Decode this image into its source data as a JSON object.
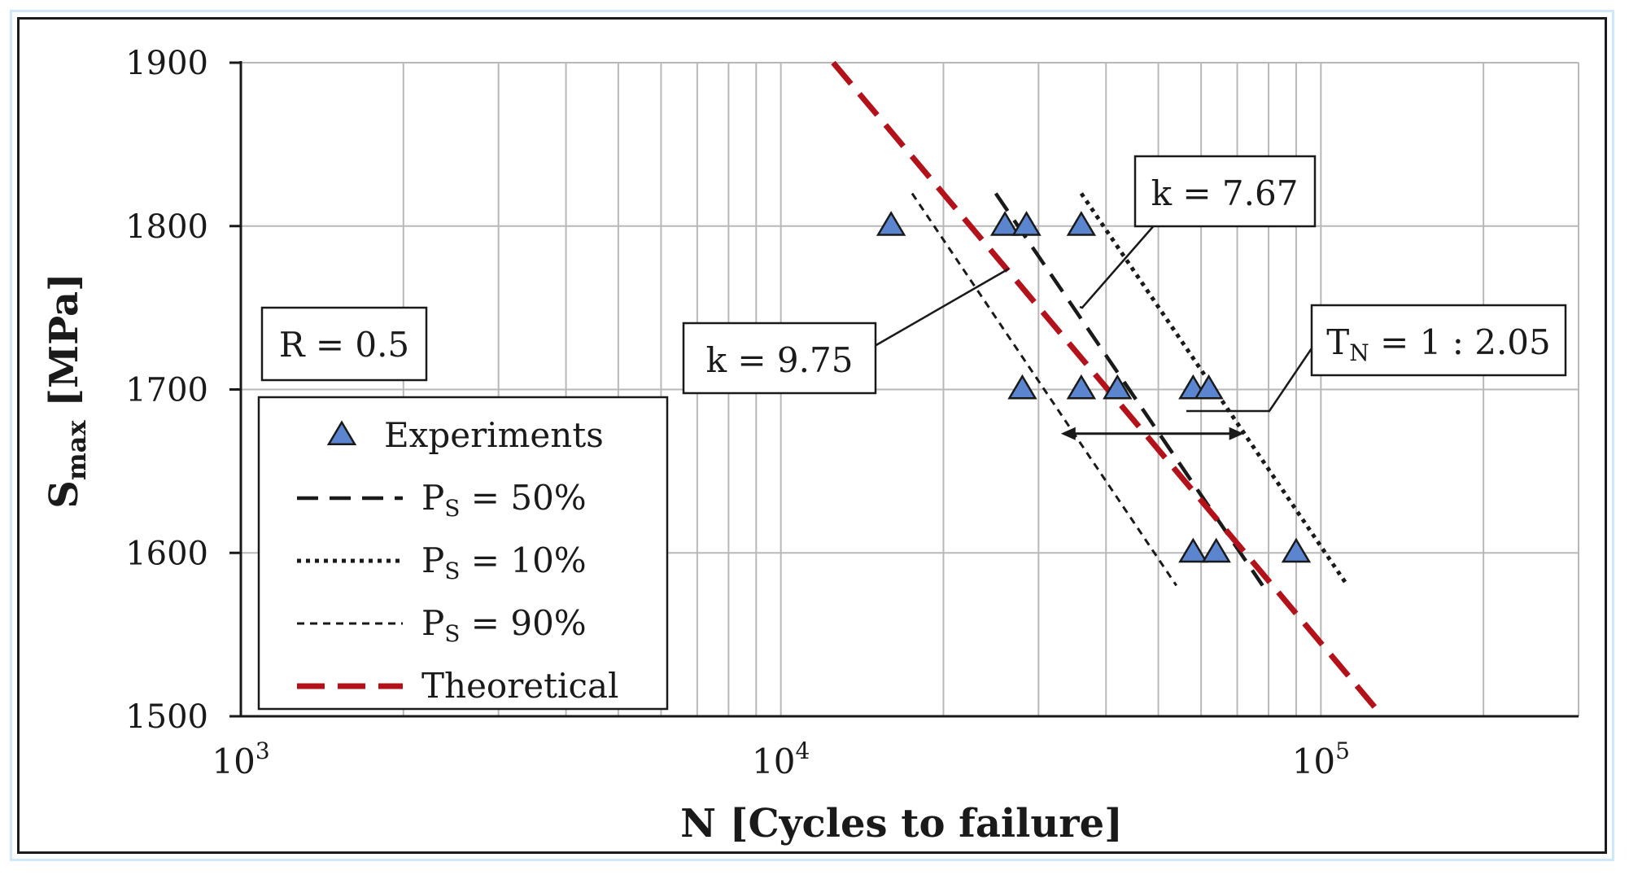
{
  "chart_data": {
    "type": "scatter",
    "title": "",
    "xlabel": "N [Cycles to failure]",
    "ylabel": {
      "main": "S",
      "sub": "max",
      "unit": " [MPa]"
    },
    "x_scale": "log",
    "xlim": [
      1000,
      300000
    ],
    "ylim": [
      1500,
      1900
    ],
    "grid": true,
    "x_ticks": [
      {
        "value": 1000,
        "base": "10",
        "exp": "3"
      },
      {
        "value": 10000,
        "base": "10",
        "exp": "4"
      },
      {
        "value": 100000,
        "base": "10",
        "exp": "5"
      }
    ],
    "y_ticks": [
      "1500",
      "1600",
      "1700",
      "1800",
      "1900"
    ],
    "experiments": {
      "name": "Experiments",
      "points": [
        {
          "x": 16000,
          "y": 1800
        },
        {
          "x": 26000,
          "y": 1800
        },
        {
          "x": 28500,
          "y": 1800
        },
        {
          "x": 36000,
          "y": 1800
        },
        {
          "x": 28000,
          "y": 1700
        },
        {
          "x": 36000,
          "y": 1700
        },
        {
          "x": 42000,
          "y": 1700
        },
        {
          "x": 58000,
          "y": 1700
        },
        {
          "x": 62000,
          "y": 1700
        },
        {
          "x": 58000,
          "y": 1600
        },
        {
          "x": 64000,
          "y": 1600
        },
        {
          "x": 90000,
          "y": 1600
        }
      ]
    },
    "series": [
      {
        "name": "P",
        "sub": "S",
        "suffix": " = 50%",
        "style": "dashed",
        "points": [
          [
            25000,
            1820
          ],
          [
            78000,
            1580
          ]
        ]
      },
      {
        "name": "P",
        "sub": "S",
        "suffix": " = 10%",
        "style": "dotted",
        "points": [
          [
            36000,
            1820
          ],
          [
            112000,
            1580
          ]
        ]
      },
      {
        "name": "P",
        "sub": "S",
        "suffix": " = 90%",
        "style": "fine-dashed",
        "points": [
          [
            17500,
            1820
          ],
          [
            54000,
            1580
          ]
        ]
      },
      {
        "name": "Theoretical",
        "sub": "",
        "suffix": "",
        "style": "red-dashed",
        "points": [
          [
            12500,
            1900
          ],
          [
            130000,
            1500
          ]
        ]
      }
    ],
    "annotations": {
      "r_ratio": "R = 0.5",
      "k1": "k = 7.67",
      "k2": "k = 9.75",
      "tn": {
        "prefix": "T",
        "sub": "N",
        "suffix": " = 1 : 2.05"
      }
    },
    "scatter_range": {
      "from": {
        "x": 33000,
        "y": 1673
      },
      "to": {
        "x": 72000,
        "y": 1673
      }
    },
    "legend_position": "bottom-left"
  },
  "colors": {
    "experiment_fill": "#5b86cf",
    "theoretical": "#b3121b",
    "ink": "#1a1a1a",
    "grid": "#b8b8b8",
    "outer_border": "#cfe7f7"
  }
}
